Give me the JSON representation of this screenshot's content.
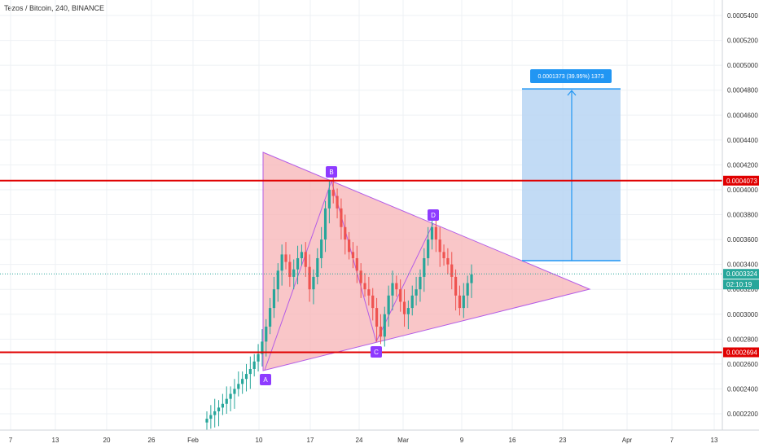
{
  "header": {
    "symbol_title": "Tezos / Bitcoin, 240, BINANCE"
  },
  "colors": {
    "grid": "#eef1f4",
    "up": "#26a69a",
    "down": "#ef5350",
    "pattern_fill": "#f7b3b6",
    "pattern_line": "#b45ce6",
    "hline": "#e00000",
    "target_fill": "#b7d5f3",
    "target_stroke": "#2196f3",
    "point_label": "#8e3bff",
    "current_price": "#26a69a",
    "axis_text": "#333333"
  },
  "price_axis": {
    "ticks": [
      "0.0005400",
      "0.0005200",
      "0.0005000",
      "0.0004800",
      "0.0004600",
      "0.0004400",
      "0.0004200",
      "0.0004000",
      "0.0003800",
      "0.0003600",
      "0.0003400",
      "0.0003200",
      "0.0003000",
      "0.0002800",
      "0.0002600",
      "0.0002400",
      "0.0002200"
    ],
    "resistance_label": "0.0004073",
    "support_label": "0.0002694",
    "current_price_label": "0.0003324",
    "countdown_label": "02:10:19"
  },
  "time_axis": {
    "ticks": [
      "7",
      "13",
      "20",
      "26",
      "Feb",
      "10",
      "17",
      "24",
      "Mar",
      "9",
      "16",
      "23",
      "Apr",
      "7",
      "13"
    ]
  },
  "pattern": {
    "points": [
      {
        "label": "A",
        "price": 0.000255
      },
      {
        "label": "B",
        "price": 0.000407
      },
      {
        "label": "C",
        "price": 0.000278
      },
      {
        "label": "D",
        "price": 0.000373
      }
    ]
  },
  "target_box": {
    "label": "0.0001373 (39.95%) 1373",
    "from_price": 0.000343,
    "to_price": 0.000481
  },
  "chart_data": {
    "type": "candlestick",
    "title": "Tezos / Bitcoin, 240, BINANCE",
    "xlabel": "",
    "ylabel": "",
    "ylim": [
      0.00021,
      0.00055
    ],
    "horizontal_levels": [
      0.0004073,
      0.0002694
    ],
    "current_price": 0.0003324,
    "candles_close": [
      0.000216,
      0.000219,
      0.000222,
      0.000225,
      0.000228,
      0.000232,
      0.000236,
      0.00024,
      0.000244,
      0.000248,
      0.000252,
      0.000256,
      0.000262,
      0.000268,
      0.000278,
      0.00029,
      0.000305,
      0.00032,
      0.000335,
      0.000348,
      0.000342,
      0.00033,
      0.000336,
      0.000345,
      0.00035,
      0.000338,
      0.00032,
      0.00033,
      0.000345,
      0.00036,
      0.000385,
      0.0004,
      0.000395,
      0.000385,
      0.00037,
      0.00036,
      0.00035,
      0.000345,
      0.000335,
      0.000325,
      0.00032,
      0.000315,
      0.000305,
      0.00029,
      0.000282,
      0.0003,
      0.000315,
      0.000325,
      0.00032,
      0.00031,
      0.0003,
      0.000305,
      0.000315,
      0.00032,
      0.00033,
      0.000345,
      0.00036,
      0.00037,
      0.00036,
      0.00035,
      0.000345,
      0.00034,
      0.00033,
      0.000315,
      0.000305,
      0.000315,
      0.000325,
      0.000332
    ]
  }
}
